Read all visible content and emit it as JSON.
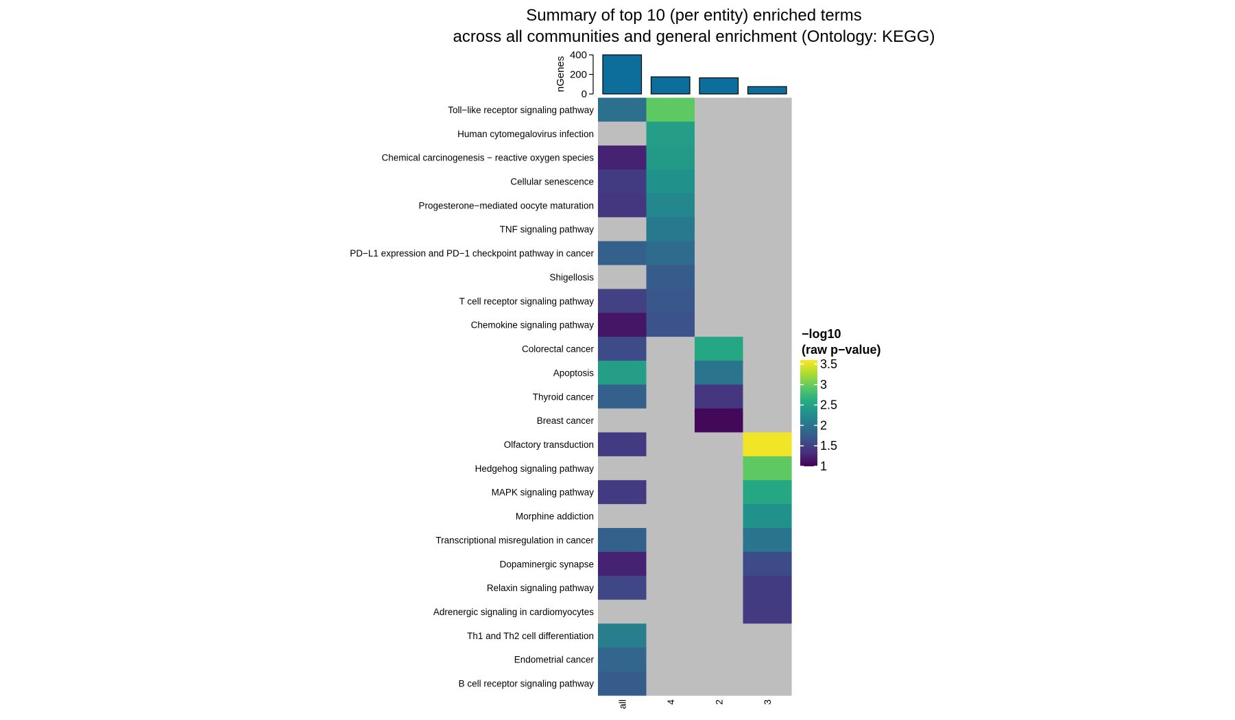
{
  "chart_data": {
    "type": "heatmap",
    "title": "Summary of top 10 (per entity) enriched terms",
    "subtitle": "across all communities and general enrichment (Ontology: KEGG)",
    "columns": [
      "all",
      "4",
      "2",
      "3"
    ],
    "rows": [
      "Toll−like receptor signaling pathway",
      "Human cytomegalovirus infection",
      "Chemical carcinogenesis − reactive oxygen species",
      "Cellular senescence",
      "Progesterone−mediated oocyte maturation",
      "TNF signaling pathway",
      "PD−L1 expression and PD−1 checkpoint pathway in cancer",
      "Shigellosis",
      "T cell receptor signaling pathway",
      "Chemokine signaling pathway",
      "Colorectal cancer",
      "Apoptosis",
      "Thyroid cancer",
      "Breast cancer",
      "Olfactory transduction",
      "Hedgehog signaling pathway",
      "MAPK signaling pathway",
      "Morphine addiction",
      "Transcriptional misregulation in cancer",
      "Dopaminergic synapse",
      "Relaxin signaling pathway",
      "Adrenergic signaling in cardiomyocytes",
      "Th1 and Th2 cell differentiation",
      "Endometrial cancer",
      "B cell receptor signaling pathway"
    ],
    "values": [
      [
        1.95,
        2.95,
        null,
        null
      ],
      [
        null,
        2.45,
        null,
        null
      ],
      [
        1.25,
        2.4,
        null,
        null
      ],
      [
        1.45,
        2.3,
        null,
        null
      ],
      [
        1.4,
        2.2,
        null,
        null
      ],
      [
        null,
        2.05,
        null,
        null
      ],
      [
        1.8,
        1.9,
        null,
        null
      ],
      [
        null,
        1.75,
        null,
        null
      ],
      [
        1.5,
        1.7,
        null,
        null
      ],
      [
        1.15,
        1.65,
        null,
        null
      ],
      [
        1.6,
        null,
        2.55,
        null
      ],
      [
        2.45,
        null,
        2.0,
        null
      ],
      [
        1.8,
        null,
        1.4,
        null
      ],
      [
        null,
        null,
        1.05,
        null
      ],
      [
        1.45,
        null,
        null,
        3.55
      ],
      [
        null,
        null,
        null,
        2.95
      ],
      [
        1.45,
        null,
        null,
        2.55
      ],
      [
        null,
        null,
        null,
        2.3
      ],
      [
        1.8,
        null,
        null,
        2.0
      ],
      [
        1.25,
        null,
        null,
        1.6
      ],
      [
        1.55,
        null,
        null,
        1.45
      ],
      [
        null,
        null,
        null,
        1.45
      ],
      [
        2.1,
        null,
        null,
        null
      ],
      [
        1.85,
        null,
        null,
        null
      ],
      [
        1.75,
        null,
        null,
        null
      ]
    ],
    "missing_color": "#bebebe",
    "colorscale": "viridis",
    "color_range": [
      1,
      3.6
    ],
    "legend": {
      "title_line1": "−log10",
      "title_line2": "(raw p−value)",
      "ticks": [
        1,
        1.5,
        2,
        2.5,
        3,
        3.5
      ],
      "tick_labels": [
        "1",
        "1.5",
        "2",
        "2.5",
        "3",
        "3.5"
      ],
      "placement": "right"
    },
    "bar_annotation": {
      "ylabel": "nGenes",
      "values": [
        400,
        175,
        165,
        75
      ],
      "ylim": [
        0,
        400
      ],
      "ticks": [
        0,
        200,
        400
      ],
      "tick_labels": [
        "0",
        "200",
        "400"
      ],
      "color": "#0e6e9b"
    }
  }
}
